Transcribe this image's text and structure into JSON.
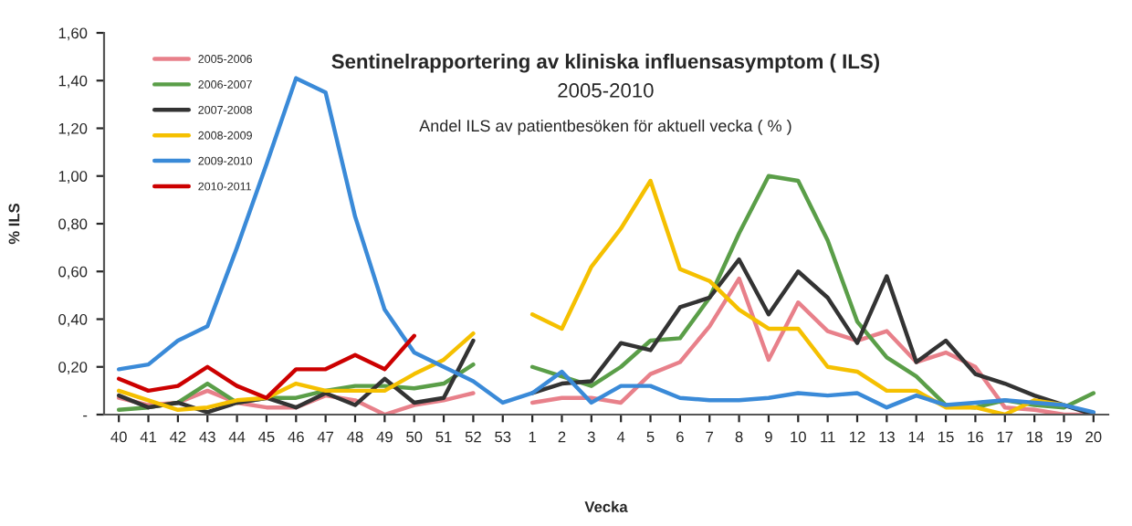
{
  "chart_data": {
    "type": "line",
    "title": "Sentinelrapportering av kliniska influensasymptom ( ILS)",
    "subtitle": "2005-2010",
    "annotations": [
      "Andel ILS av patientbesöken för aktuell vecka ( % )"
    ],
    "xlabel": "Vecka",
    "ylabel": "% ILS",
    "categories": [
      "40",
      "41",
      "42",
      "43",
      "44",
      "45",
      "46",
      "47",
      "48",
      "49",
      "50",
      "51",
      "52",
      "53",
      "1",
      "2",
      "3",
      "4",
      "5",
      "6",
      "7",
      "8",
      "9",
      "10",
      "11",
      "12",
      "13",
      "14",
      "15",
      "16",
      "17",
      "18",
      "19",
      "20"
    ],
    "series": [
      {
        "name": "2005-2006",
        "color": "#e8808a",
        "values": [
          0.07,
          0.04,
          0.05,
          0.1,
          0.05,
          0.03,
          0.03,
          0.08,
          0.06,
          0.0,
          0.04,
          0.06,
          0.09,
          null,
          0.05,
          0.07,
          0.07,
          0.05,
          0.17,
          0.22,
          0.37,
          0.57,
          0.23,
          0.47,
          0.35,
          0.31,
          0.35,
          0.22,
          0.26,
          0.2,
          0.03,
          0.02,
          0.0,
          0.0
        ]
      },
      {
        "name": "2006-2007",
        "color": "#5a9e48",
        "values": [
          0.02,
          0.03,
          0.05,
          0.13,
          0.05,
          0.07,
          0.07,
          0.1,
          0.12,
          0.12,
          0.11,
          0.13,
          0.21,
          null,
          0.2,
          0.16,
          0.12,
          0.2,
          0.31,
          0.32,
          0.49,
          0.76,
          1.0,
          0.98,
          0.73,
          0.39,
          0.24,
          0.16,
          0.04,
          0.03,
          0.06,
          0.04,
          0.03,
          0.09
        ]
      },
      {
        "name": "2007-2008",
        "color": "#333333",
        "values": [
          0.08,
          0.03,
          0.05,
          0.01,
          0.05,
          0.07,
          0.03,
          0.09,
          0.04,
          0.15,
          0.05,
          0.07,
          0.31,
          null,
          0.09,
          0.13,
          0.14,
          0.3,
          0.27,
          0.45,
          0.49,
          0.65,
          0.42,
          0.6,
          0.49,
          0.3,
          0.58,
          0.22,
          0.31,
          0.17,
          0.13,
          0.08,
          0.04,
          0.0
        ]
      },
      {
        "name": "2008-2009",
        "color": "#f5c000",
        "values": [
          0.1,
          0.06,
          0.02,
          0.03,
          0.06,
          0.07,
          0.13,
          0.1,
          0.1,
          0.1,
          0.17,
          0.23,
          0.34,
          null,
          0.42,
          0.36,
          0.62,
          0.78,
          0.98,
          0.61,
          0.56,
          0.44,
          0.36,
          0.36,
          0.2,
          0.18,
          0.1,
          0.1,
          0.03,
          0.03,
          0.0,
          0.06,
          0.04,
          null
        ]
      },
      {
        "name": "2009-2010",
        "color": "#3a8ad8",
        "values": [
          0.19,
          0.21,
          0.31,
          0.37,
          0.7,
          1.05,
          1.41,
          1.35,
          0.83,
          0.44,
          0.26,
          0.2,
          0.14,
          0.05,
          0.09,
          0.18,
          0.05,
          0.12,
          0.12,
          0.07,
          0.06,
          0.06,
          0.07,
          0.09,
          0.08,
          0.09,
          0.03,
          0.08,
          0.04,
          0.05,
          0.06,
          0.05,
          0.04,
          0.01
        ]
      },
      {
        "name": "2010-2011",
        "color": "#cc0000",
        "values": [
          0.15,
          0.1,
          0.12,
          0.2,
          0.12,
          0.07,
          0.19,
          0.19,
          0.25,
          0.19,
          0.33,
          null,
          null,
          null,
          null,
          null,
          null,
          null,
          null,
          null,
          null,
          null,
          null,
          null,
          null,
          null,
          null,
          null,
          null,
          null,
          null,
          null,
          null,
          null
        ]
      }
    ],
    "ylim": [
      0,
      1.6
    ],
    "yticks": [
      {
        "value": 0,
        "label": "-"
      },
      {
        "value": 0.2,
        "label": "0,20"
      },
      {
        "value": 0.4,
        "label": "0,40"
      },
      {
        "value": 0.6,
        "label": "0,60"
      },
      {
        "value": 0.8,
        "label": "0,80"
      },
      {
        "value": 1.0,
        "label": "1,00"
      },
      {
        "value": 1.2,
        "label": "1,20"
      },
      {
        "value": 1.4,
        "label": "1,40"
      },
      {
        "value": 1.6,
        "label": "1,60"
      }
    ],
    "grid": false,
    "legend": "top left",
    "marker": "none",
    "line_style": "solid"
  }
}
